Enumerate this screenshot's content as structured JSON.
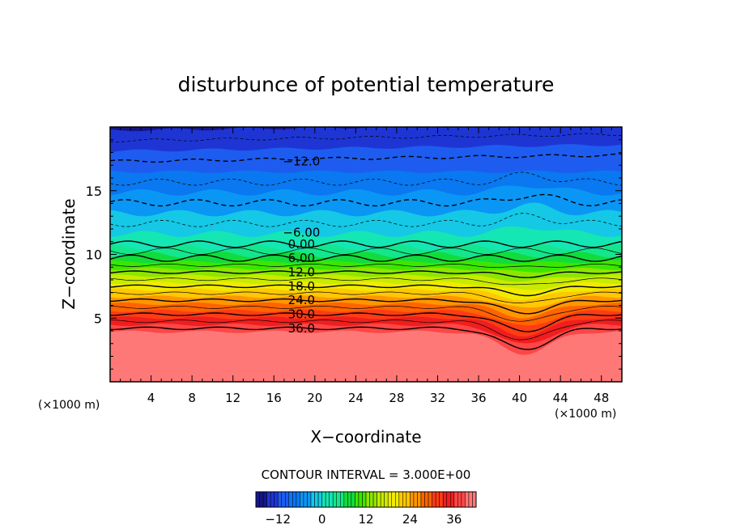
{
  "chart_data": {
    "type": "heatmap",
    "title": "disturbunce of potential temperature",
    "xlabel": "X−coordinate",
    "ylabel": "Z−coordinate",
    "x_unit": "(×1000 m)",
    "y_unit": "(×1000 m)",
    "xlim": [
      0,
      50
    ],
    "ylim": [
      0,
      20
    ],
    "x_ticks": [
      4,
      8,
      12,
      16,
      20,
      24,
      28,
      32,
      36,
      40,
      44,
      48
    ],
    "y_ticks": [
      5,
      10,
      15
    ],
    "contour_interval_text": "CONTOUR INTERVAL = 3.000E+00",
    "contour_labels": [
      {
        "text": "−12.0",
        "x": 18.7,
        "z": 17.3
      },
      {
        "text": "−6.00",
        "x": 18.7,
        "z": 11.7
      },
      {
        "text": "0.00",
        "x": 18.7,
        "z": 10.8
      },
      {
        "text": "6.00",
        "x": 18.7,
        "z": 9.7
      },
      {
        "text": "12.0",
        "x": 18.7,
        "z": 8.6
      },
      {
        "text": "18.0",
        "x": 18.7,
        "z": 7.5
      },
      {
        "text": "24.0",
        "x": 18.7,
        "z": 6.4
      },
      {
        "text": "30.0",
        "x": 18.7,
        "z": 5.3
      },
      {
        "text": "36.0",
        "x": 18.7,
        "z": 4.2
      }
    ],
    "color_levels": [
      {
        "value": -18,
        "color": "#16168a"
      },
      {
        "value": -15,
        "color": "#1e35d4"
      },
      {
        "value": -12,
        "color": "#1e5cf0"
      },
      {
        "value": -9,
        "color": "#0a78f0"
      },
      {
        "value": -6,
        "color": "#0a96f5"
      },
      {
        "value": -3,
        "color": "#14c8e6"
      },
      {
        "value": 0,
        "color": "#14e6b4"
      },
      {
        "value": 3,
        "color": "#14e68c"
      },
      {
        "value": 6,
        "color": "#10dc3c"
      },
      {
        "value": 9,
        "color": "#3ce600"
      },
      {
        "value": 12,
        "color": "#8ce600"
      },
      {
        "value": 15,
        "color": "#c8eb00"
      },
      {
        "value": 18,
        "color": "#f0eb00"
      },
      {
        "value": 21,
        "color": "#ffc800"
      },
      {
        "value": 24,
        "color": "#ff9600"
      },
      {
        "value": 27,
        "color": "#ff6400"
      },
      {
        "value": 30,
        "color": "#ff3c14"
      },
      {
        "value": 33,
        "color": "#f01e1e"
      },
      {
        "value": 36,
        "color": "#ff4646"
      },
      {
        "value": 39,
        "color": "#ff7878"
      }
    ],
    "colorbar_ticks": [
      "−12",
      "0",
      "12",
      "24",
      "36"
    ],
    "colorbar_range": [
      -18,
      42
    ]
  }
}
